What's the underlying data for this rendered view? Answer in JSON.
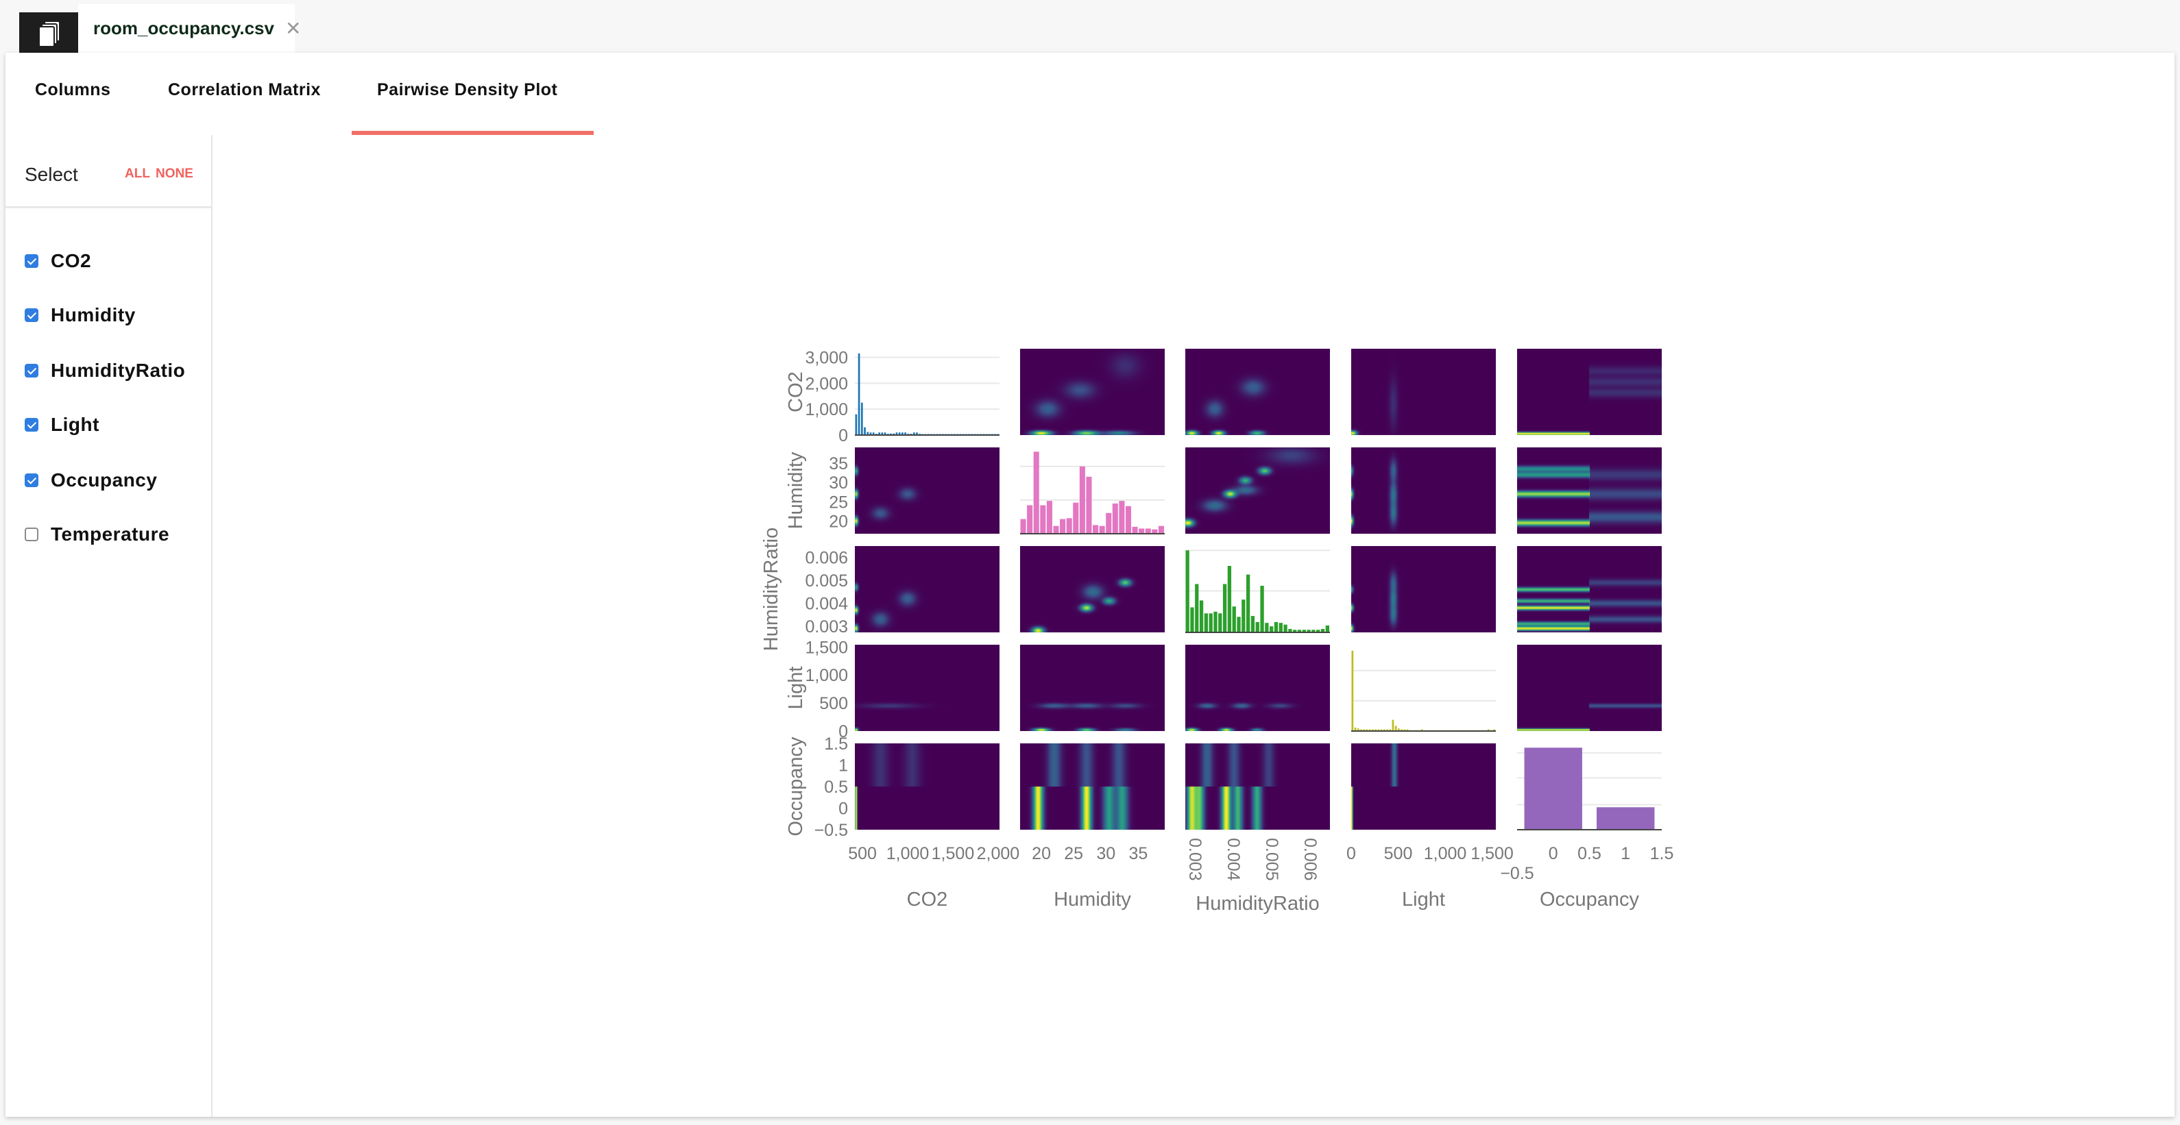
{
  "file_tab": {
    "name": "room_occupancy.csv",
    "close": "✕"
  },
  "nav_tabs": [
    "Columns",
    "Correlation Matrix",
    "Pairwise Density Plot"
  ],
  "active_tab": "Pairwise Density Plot",
  "sidebar": {
    "select_label": "Select",
    "all_label": "ALL",
    "none_label": "NONE",
    "items": [
      {
        "label": "CO2",
        "checked": true
      },
      {
        "label": "Humidity",
        "checked": true
      },
      {
        "label": "HumidityRatio",
        "checked": true
      },
      {
        "label": "Light",
        "checked": true
      },
      {
        "label": "Occupancy",
        "checked": true
      },
      {
        "label": "Temperature",
        "checked": false
      }
    ]
  },
  "colors": {
    "accent": "#f07068",
    "checkbox": "#2f7de1"
  },
  "chart_data": {
    "type": "pairwise-density",
    "variables": [
      {
        "name": "CO2",
        "range": [
          416,
          2016
        ],
        "color": "#1f77b4",
        "ticks": [
          {
            "v": 500,
            "label": "500"
          },
          {
            "v": 1000,
            "label": "1,000"
          },
          {
            "v": 1500,
            "label": "1,500"
          },
          {
            "v": 2000,
            "label": "2,000"
          }
        ],
        "hist": {
          "ylim": [
            0,
            3330
          ],
          "grid": [
            0,
            1000,
            2000,
            3000
          ],
          "yticks": [
            {
              "v": 0,
              "label": "0"
            },
            {
              "v": 1000,
              "label": "1,000"
            },
            {
              "v": 2000,
              "label": "2,000"
            },
            {
              "v": 3000,
              "label": "3,000"
            }
          ],
          "values": [
            800,
            3150,
            1250,
            300,
            120,
            100,
            100,
            50,
            100,
            100,
            100,
            50,
            60,
            60,
            100,
            100,
            100,
            100,
            50,
            50,
            100,
            100,
            50,
            40,
            40,
            40,
            40,
            40,
            40,
            40,
            40,
            40,
            40,
            40,
            40,
            40,
            40,
            40,
            40,
            40,
            40,
            40,
            40,
            40,
            40,
            40,
            40,
            40,
            40,
            40
          ]
        }
      },
      {
        "name": "Humidity",
        "range": [
          16.7,
          39.1
        ],
        "color": "#e377c2",
        "ticks": [
          {
            "v": 20,
            "label": "20"
          },
          {
            "v": 25,
            "label": "25"
          },
          {
            "v": 30,
            "label": "30"
          },
          {
            "v": 35,
            "label": "35"
          }
        ],
        "hist": {
          "ylim": [
            0,
            1
          ],
          "grid": [
            0.39,
            0.78
          ],
          "values": [
            0.17,
            0.33,
            0.95,
            0.33,
            0.38,
            0.09,
            0.17,
            0.18,
            0.36,
            0.78,
            0.66,
            0.1,
            0.09,
            0.24,
            0.35,
            0.38,
            0.32,
            0.08,
            0.06,
            0.06,
            0.05,
            0.09
          ]
        }
      },
      {
        "name": "HumidityRatio",
        "range": [
          0.00273,
          0.0065
        ],
        "color": "#2ca02c",
        "rotate_ticks": true,
        "ticks": [
          {
            "v": 0.003,
            "label": "0.003"
          },
          {
            "v": 0.004,
            "label": "0.004"
          },
          {
            "v": 0.005,
            "label": "0.005"
          },
          {
            "v": 0.006,
            "label": "0.006"
          }
        ],
        "hist": {
          "ylim": [
            0,
            1
          ],
          "grid": [
            0.48,
            0.95
          ],
          "values": [
            0.95,
            0.29,
            0.56,
            0.37,
            0.22,
            0.22,
            0.24,
            0.22,
            0.56,
            0.77,
            0.3,
            0.18,
            0.38,
            0.67,
            0.19,
            0.12,
            0.54,
            0.11,
            0.07,
            0.12,
            0.11,
            0.09,
            0.04,
            0.03,
            0.03,
            0.03,
            0.03,
            0.03,
            0.03,
            0.04,
            0.08
          ]
        }
      },
      {
        "name": "Light",
        "range": [
          0,
          1540
        ],
        "color": "#bcbd22",
        "ticks": [
          {
            "v": 0,
            "label": "0"
          },
          {
            "v": 500,
            "label": "500"
          },
          {
            "v": 1000,
            "label": "1,000"
          },
          {
            "v": 1500,
            "label": "1,500"
          }
        ],
        "hist": {
          "ylim": [
            0,
            1
          ],
          "grid": [
            0.35,
            0.7
          ],
          "values": [
            0.93,
            0.04,
            0.03,
            0.02,
            0.02,
            0.02,
            0.02,
            0.02,
            0.02,
            0.02,
            0.02,
            0.02,
            0.02,
            0.02,
            0.13,
            0.06,
            0.03,
            0.02,
            0.02,
            0.02,
            0.01,
            0.01,
            0.01,
            0.01,
            0.02,
            0.01,
            0.01,
            0.01,
            0.01,
            0.01,
            0.01,
            0.01,
            0.01,
            0.01,
            0.01,
            0.01,
            0.01,
            0.01,
            0.01,
            0.01,
            0.01,
            0.01,
            0.01,
            0.01,
            0.01,
            0.01,
            0.01,
            0.02,
            0.01,
            0.02
          ]
        }
      },
      {
        "name": "Occupancy",
        "range": [
          -0.5,
          1.5
        ],
        "color": "#9467bd",
        "ticks": [
          {
            "v": -0.5,
            "label": "−0.5"
          },
          {
            "v": 0,
            "label": "0"
          },
          {
            "v": 0.5,
            "label": "0.5"
          },
          {
            "v": 1,
            "label": "1"
          },
          {
            "v": 1.5,
            "label": "1.5"
          }
        ],
        "hist": {
          "ylim": [
            0,
            1
          ],
          "grid": [
            0.29,
            0.6,
            0.89
          ],
          "categorical": [
            0,
            1
          ],
          "values": [
            0.95,
            0.26
          ]
        }
      }
    ],
    "density": [
      {
        "row": "CO2",
        "col": "Humidity",
        "spots": [
          [
            20,
            450,
            1,
            30,
            1
          ],
          [
            27,
            450,
            1.2,
            30,
            0.8
          ],
          [
            32,
            450,
            1.5,
            30,
            0.4
          ],
          [
            21,
            900,
            1.2,
            100,
            0.25
          ],
          [
            26,
            1250,
            1.5,
            100,
            0.2
          ],
          [
            33,
            1700,
            1.5,
            150,
            0.1
          ]
        ]
      },
      {
        "row": "CO2",
        "col": "HumidityRatio",
        "spots": [
          [
            0.0029,
            450,
            0.0001,
            30,
            0.8
          ],
          [
            0.0036,
            450,
            0.0001,
            30,
            0.8
          ],
          [
            0.0046,
            450,
            0.00012,
            30,
            0.5
          ],
          [
            0.0035,
            900,
            0.00015,
            100,
            0.2
          ],
          [
            0.0045,
            1300,
            0.0002,
            100,
            0.2
          ]
        ]
      },
      {
        "row": "CO2",
        "col": "Light",
        "spots": [
          [
            15,
            450,
            30,
            30,
            0.8
          ],
          [
            450,
            1000,
            30,
            300,
            0.08
          ]
        ]
      },
      {
        "row": "CO2",
        "col": "Occupancy",
        "bands": [
          [
            0,
            440,
            20,
            1
          ],
          [
            1,
            1200,
            60,
            0.1
          ],
          [
            1,
            1400,
            60,
            0.1
          ],
          [
            1,
            1600,
            60,
            0.08
          ]
        ]
      },
      {
        "row": "Humidity",
        "col": "CO2",
        "spots": [
          [
            430,
            20,
            15,
            0.7,
            0.9
          ],
          [
            430,
            27,
            15,
            0.7,
            0.8
          ],
          [
            430,
            33,
            15,
            0.7,
            0.5
          ],
          [
            700,
            22,
            60,
            1,
            0.2
          ],
          [
            1000,
            27,
            60,
            1,
            0.2
          ]
        ]
      },
      {
        "row": "Humidity",
        "col": "HumidityRatio",
        "spots": [
          [
            0.0028,
            19.5,
            0.0001,
            0.6,
            1
          ],
          [
            0.0039,
            27,
            0.0001,
            0.6,
            0.9
          ],
          [
            0.0043,
            30.5,
            0.0001,
            0.6,
            0.6
          ],
          [
            0.0048,
            33,
            0.0001,
            0.6,
            0.7
          ],
          [
            0.0043,
            28,
            0.0002,
            0.8,
            0.3
          ],
          [
            0.0035,
            24,
            0.0002,
            1,
            0.3
          ],
          [
            0.0055,
            37,
            0.0004,
            1.5,
            0.15
          ]
        ]
      },
      {
        "row": "Humidity",
        "col": "Light",
        "spots": [
          [
            0,
            20,
            15,
            0.8,
            0.8
          ],
          [
            0,
            27,
            15,
            0.8,
            0.7
          ],
          [
            0,
            33,
            15,
            0.8,
            0.4
          ],
          [
            450,
            27,
            25,
            2,
            0.25
          ],
          [
            450,
            22,
            25,
            2,
            0.25
          ],
          [
            450,
            33,
            25,
            2,
            0.2
          ]
        ]
      },
      {
        "row": "Humidity",
        "col": "Occupancy",
        "bands": [
          [
            0,
            19.5,
            0.5,
            1
          ],
          [
            0,
            27,
            0.5,
            0.95
          ],
          [
            0,
            32,
            0.5,
            0.55
          ],
          [
            0,
            33.5,
            0.5,
            0.5
          ],
          [
            1,
            21,
            1,
            0.25
          ],
          [
            1,
            27,
            1,
            0.2
          ],
          [
            1,
            32,
            1,
            0.15
          ]
        ]
      },
      {
        "row": "HumidityRatio",
        "col": "CO2",
        "spots": [
          [
            430,
            0.0029,
            15,
            0.0001,
            0.8
          ],
          [
            430,
            0.0037,
            15,
            0.0001,
            0.8
          ],
          [
            430,
            0.0047,
            15,
            0.0001,
            0.4
          ],
          [
            700,
            0.0033,
            60,
            0.0002,
            0.2
          ],
          [
            1000,
            0.0042,
            60,
            0.0002,
            0.2
          ]
        ]
      },
      {
        "row": "HumidityRatio",
        "col": "Humidity",
        "spots": [
          [
            19.5,
            0.0028,
            0.6,
            0.0001,
            1
          ],
          [
            27,
            0.0038,
            0.6,
            0.0001,
            0.9
          ],
          [
            30.5,
            0.0041,
            0.6,
            0.0001,
            0.55
          ],
          [
            33,
            0.0049,
            0.6,
            0.0001,
            0.7
          ],
          [
            28,
            0.0045,
            1,
            0.0002,
            0.3
          ]
        ]
      },
      {
        "row": "HumidityRatio",
        "col": "Light",
        "spots": [
          [
            0,
            0.0029,
            15,
            0.0001,
            0.8
          ],
          [
            0,
            0.0038,
            15,
            0.0001,
            0.7
          ],
          [
            0,
            0.0046,
            15,
            0.0001,
            0.4
          ],
          [
            450,
            0.0035,
            25,
            0.0003,
            0.25
          ],
          [
            450,
            0.0042,
            25,
            0.0003,
            0.25
          ],
          [
            450,
            0.0049,
            25,
            0.0003,
            0.2
          ]
        ]
      },
      {
        "row": "HumidityRatio",
        "col": "Occupancy",
        "bands": [
          [
            0,
            0.0029,
            6e-05,
            1
          ],
          [
            0,
            0.0031,
            6e-05,
            0.6
          ],
          [
            0,
            0.0038,
            6e-05,
            1
          ],
          [
            0,
            0.0041,
            6e-05,
            0.6
          ],
          [
            0,
            0.0046,
            6e-05,
            0.7
          ],
          [
            1,
            0.0033,
            0.0001,
            0.2
          ],
          [
            1,
            0.004,
            0.0001,
            0.2
          ],
          [
            1,
            0.0049,
            0.0001,
            0.15
          ]
        ]
      },
      {
        "row": "Light",
        "col": "CO2",
        "spots": [
          [
            430,
            20,
            15,
            20,
            0.8
          ],
          [
            800,
            450,
            200,
            30,
            0.1
          ]
        ]
      },
      {
        "row": "Light",
        "col": "Humidity",
        "spots": [
          [
            20,
            20,
            0.8,
            20,
            0.8
          ],
          [
            27,
            20,
            0.8,
            20,
            0.6
          ],
          [
            33,
            20,
            1,
            20,
            0.3
          ],
          [
            22,
            450,
            1.5,
            30,
            0.2
          ],
          [
            27,
            450,
            1.5,
            30,
            0.2
          ],
          [
            33,
            450,
            1.5,
            30,
            0.15
          ]
        ]
      },
      {
        "row": "Light",
        "col": "HumidityRatio",
        "spots": [
          [
            0.0029,
            20,
            0.0001,
            20,
            0.7
          ],
          [
            0.0038,
            20,
            0.0001,
            20,
            0.7
          ],
          [
            0.0046,
            20,
            0.0001,
            20,
            0.3
          ],
          [
            0.0033,
            450,
            0.00015,
            30,
            0.2
          ],
          [
            0.0042,
            450,
            0.00015,
            30,
            0.2
          ],
          [
            0.0052,
            450,
            0.0002,
            30,
            0.12
          ]
        ]
      },
      {
        "row": "Light",
        "col": "Occupancy",
        "bands": [
          [
            0,
            20,
            15,
            1
          ],
          [
            1,
            450,
            25,
            0.2
          ]
        ]
      },
      {
        "row": "Occupancy",
        "col": "CO2",
        "bands": [
          [
            0,
            430,
            8,
            1
          ],
          [
            1,
            700,
            60,
            0.1
          ],
          [
            1,
            1050,
            60,
            0.1
          ]
        ]
      },
      {
        "row": "Occupancy",
        "col": "Humidity",
        "bands": [
          [
            0,
            19.5,
            0.5,
            1
          ],
          [
            0,
            27,
            0.5,
            1
          ],
          [
            0,
            30.5,
            0.6,
            0.5
          ],
          [
            0,
            32.5,
            0.6,
            0.5
          ],
          [
            1,
            22,
            0.7,
            0.25
          ],
          [
            1,
            27,
            0.7,
            0.2
          ],
          [
            1,
            32,
            0.7,
            0.2
          ]
        ]
      },
      {
        "row": "Occupancy",
        "col": "HumidityRatio",
        "bands": [
          [
            0,
            0.0029,
            8e-05,
            0.9
          ],
          [
            0,
            0.0031,
            8e-05,
            0.7
          ],
          [
            0,
            0.0038,
            8e-05,
            1
          ],
          [
            0,
            0.0041,
            8e-05,
            0.6
          ],
          [
            0,
            0.0046,
            8e-05,
            0.55
          ],
          [
            1,
            0.0033,
            0.0001,
            0.25
          ],
          [
            1,
            0.004,
            0.0001,
            0.2
          ],
          [
            1,
            0.0049,
            0.0001,
            0.15
          ]
        ]
      },
      {
        "row": "Occupancy",
        "col": "Light",
        "bands": [
          [
            0,
            5,
            8,
            1
          ],
          [
            1,
            460,
            20,
            0.3
          ]
        ]
      }
    ]
  }
}
